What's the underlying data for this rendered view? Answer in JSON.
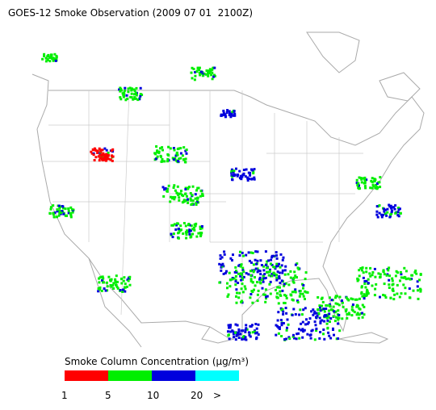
{
  "title": "GOES-12 Smoke Observation (2009 07 01  2100Z)",
  "legend": {
    "title": "Smoke Column Concentration (μg/m³)",
    "colors": [
      "#ff0000",
      "#00ee00",
      "#0000dd",
      "#00ffff"
    ],
    "labels": [
      "1",
      "5",
      "10",
      "20",
      ">"
    ]
  }
}
